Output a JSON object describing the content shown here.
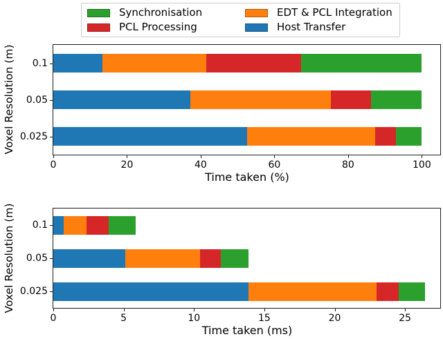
{
  "legend": {
    "items": [
      {
        "label": "Synchronisation",
        "color": "#2ca02c"
      },
      {
        "label": "EDT & PCL Integration",
        "color": "#ff7f0e"
      },
      {
        "label": "PCL Processing",
        "color": "#d62728"
      },
      {
        "label": "Host Transfer",
        "color": "#1f77b4"
      }
    ]
  },
  "chart_data": [
    {
      "type": "bar",
      "orientation": "horizontal",
      "stacked": true,
      "title": "",
      "xlabel": "Time taken (%)",
      "ylabel": "Voxel Resolution (m)",
      "categories": [
        "0.1",
        "0.05",
        "0.025"
      ],
      "xlim": [
        0,
        105
      ],
      "xticks": [
        0,
        20,
        40,
        60,
        80,
        100
      ],
      "grid": false,
      "legend_position": "top-center",
      "series": [
        {
          "name": "Host Transfer",
          "color": "#1f77b4",
          "values": [
            13.4,
            37.2,
            52.6
          ]
        },
        {
          "name": "EDT & PCL Integration",
          "color": "#ff7f0e",
          "values": [
            28.2,
            38.2,
            34.8
          ]
        },
        {
          "name": "PCL Processing",
          "color": "#d62728",
          "values": [
            25.7,
            10.9,
            5.6
          ]
        },
        {
          "name": "Synchronisation",
          "color": "#2ca02c",
          "values": [
            32.7,
            13.7,
            7.0
          ]
        }
      ]
    },
    {
      "type": "bar",
      "orientation": "horizontal",
      "stacked": true,
      "title": "",
      "xlabel": "Time taken (ms)",
      "ylabel": "Voxel Resolution (m)",
      "categories": [
        "0.1",
        "0.05",
        "0.025"
      ],
      "xlim": [
        0,
        27.5
      ],
      "xticks": [
        0,
        5,
        10,
        15,
        20,
        25
      ],
      "grid": false,
      "series": [
        {
          "name": "Host Transfer",
          "color": "#1f77b4",
          "values": [
            0.74,
            5.13,
            13.89
          ]
        },
        {
          "name": "EDT & PCL Integration",
          "color": "#ff7f0e",
          "values": [
            1.64,
            5.28,
            9.1
          ]
        },
        {
          "name": "PCL Processing",
          "color": "#d62728",
          "values": [
            1.56,
            1.51,
            1.56
          ]
        },
        {
          "name": "Synchronisation",
          "color": "#2ca02c",
          "values": [
            1.93,
            1.97,
            1.85
          ]
        }
      ]
    }
  ]
}
